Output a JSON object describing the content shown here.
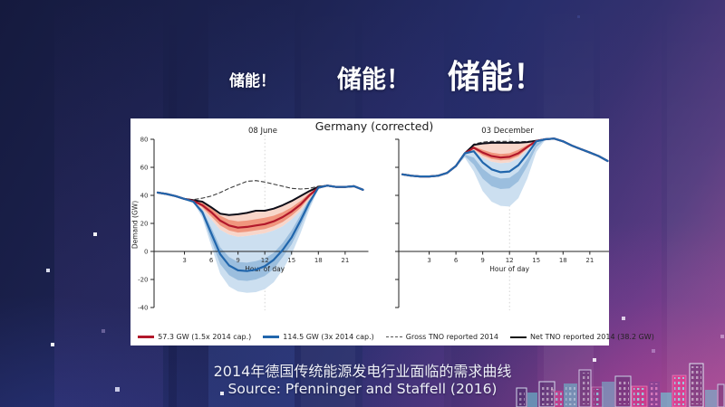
{
  "headline": {
    "items": [
      {
        "text": "储能！"
      },
      {
        "text": "储能！"
      },
      {
        "text": "储能！"
      }
    ]
  },
  "caption": {
    "line1": "2014年德国传统能源发电行业面临的需求曲线",
    "line2": "Source: Pfenninger and Staffell (2016)"
  },
  "chart_data": {
    "type": "line",
    "title": "Germany (corrected)",
    "ylabel": "Demand (GW)",
    "xlabel": "Hour of day",
    "ylim": [
      -45,
      85
    ],
    "yticks": [
      -40,
      -20,
      0,
      20,
      40,
      60,
      80
    ],
    "xticks": [
      3,
      6,
      9,
      12,
      15,
      18,
      21
    ],
    "vline_hour": 12,
    "grid": "off",
    "legend_position": "bottom",
    "colors": {
      "red": "#b2182b",
      "blue": "#2166ac",
      "gross": "#3a3a3a",
      "net": "#0d0d18",
      "band_red_outer": "#f7d3c6",
      "band_red_inner": "#ee8d73",
      "band_blue_outer": "#ccdff0",
      "band_blue_inner": "#8db5d9"
    },
    "legend": [
      {
        "label": "57.3 GW (1.5x 2014 cap.)",
        "color": "#b2182b",
        "style": "solid"
      },
      {
        "label": "114.5 GW (3x 2014 cap.)",
        "color": "#2166ac",
        "style": "solid"
      },
      {
        "label": "Gross TNO reported 2014",
        "color": "#555555",
        "style": "dashed"
      },
      {
        "label": "Net TNO reported 2014 (38.2 GW)",
        "color": "#111111",
        "style": "solid"
      }
    ],
    "subplots": [
      {
        "title": "08 June",
        "show_y_tick_labels": true,
        "hours": [
          0,
          1,
          2,
          3,
          4,
          5,
          6,
          7,
          8,
          9,
          10,
          11,
          12,
          13,
          14,
          15,
          16,
          17,
          18,
          19,
          20,
          21,
          22,
          23
        ],
        "series": {
          "gross": [
            42,
            41,
            39.5,
            37.5,
            37,
            38,
            39.5,
            42,
            45,
            47.5,
            50,
            50.5,
            49.5,
            48,
            46.5,
            45,
            44.5,
            45,
            46.5,
            47,
            46,
            46,
            46.5,
            44
          ],
          "net": [
            42,
            41,
            39.5,
            37.5,
            36.5,
            35.5,
            31.5,
            27,
            26,
            26.5,
            27.5,
            29,
            29,
            30.5,
            33,
            36,
            39.5,
            43,
            46,
            47,
            46,
            46,
            46.5,
            44
          ],
          "capacity_57_3": [
            42,
            41,
            39.5,
            37.5,
            36,
            33,
            28,
            22,
            18.5,
            17,
            17.5,
            18.5,
            19.5,
            21.5,
            24.5,
            28.5,
            33.5,
            40,
            45.5,
            47,
            46,
            46,
            46.5,
            44
          ],
          "capacity_114_5": [
            42,
            41,
            39.5,
            37.5,
            35.5,
            28,
            13,
            -2,
            -10,
            -13.5,
            -14,
            -13,
            -10.5,
            -6,
            1,
            10,
            22,
            35,
            45.5,
            47,
            46,
            46,
            46.5,
            44
          ]
        },
        "bands": {
          "blue_outer": {
            "upper": [
              42,
              41,
              39.5,
              37.5,
              35.5,
              30,
              23,
              15.5,
              12,
              10.5,
              11,
              12,
              13,
              15,
              18,
              23,
              29,
              37,
              45,
              47,
              46,
              46,
              46.5,
              44
            ],
            "lower": [
              42,
              41,
              39.5,
              37.5,
              35,
              24,
              4,
              -16,
              -25,
              -28.5,
              -29.5,
              -29,
              -27,
              -22,
              -13,
              -2,
              13,
              30,
              44.5,
              47,
              46,
              46,
              46.5,
              44
            ]
          },
          "blue_inner": {
            "upper": [
              42,
              41,
              39.5,
              37.5,
              35.5,
              30,
              17,
              3,
              -4,
              -7.5,
              -8,
              -7,
              -5,
              -1,
              6,
              15,
              26,
              38,
              45.5,
              47,
              46,
              46,
              46.5,
              44
            ],
            "lower": [
              42,
              41,
              39.5,
              37.5,
              35.2,
              26,
              8,
              -9,
              -17,
              -20.5,
              -21,
              -20,
              -17.5,
              -12.5,
              -4,
              5,
              18,
              32,
              45,
              47,
              46,
              46,
              46.5,
              44
            ]
          },
          "red_outer": {
            "upper": [
              42,
              41,
              39.5,
              37.5,
              36.5,
              35.5,
              31.5,
              27,
              26,
              26.5,
              27.5,
              29,
              29,
              30.5,
              33,
              36,
              39.5,
              43,
              46,
              47,
              46,
              46,
              46.5,
              44
            ],
            "lower": [
              42,
              41,
              39.5,
              37.5,
              35.5,
              30,
              23,
              15.5,
              12,
              10.5,
              11,
              12,
              13,
              15,
              18,
              23,
              29,
              37,
              45,
              47,
              46,
              46,
              46.5,
              44
            ]
          },
          "red_inner": {
            "upper": [
              42,
              41,
              39.5,
              37.5,
              36.2,
              34.5,
              31,
              25.5,
              22.5,
              21.5,
              22,
              23,
              24,
              25.5,
              28,
              31.5,
              36,
              41.5,
              45.8,
              47,
              46,
              46,
              46.5,
              44
            ],
            "lower": [
              42,
              41,
              39.5,
              37.5,
              35.8,
              31.5,
              25,
              18.5,
              15,
              13.5,
              14,
              15,
              16,
              18,
              21,
              25.5,
              31,
              38.5,
              45.2,
              47,
              46,
              46,
              46.5,
              44
            ]
          }
        }
      },
      {
        "title": "03 December",
        "show_y_tick_labels": false,
        "hours": [
          0,
          1,
          2,
          3,
          4,
          5,
          6,
          7,
          8,
          9,
          10,
          11,
          12,
          13,
          14,
          15,
          16,
          17,
          18,
          19,
          20,
          21,
          22,
          23
        ],
        "series": {
          "gross": [
            55,
            54,
            53.5,
            53.5,
            54,
            56,
            61,
            70,
            76.5,
            78,
            78.5,
            78.5,
            78.5,
            78.2,
            78.4,
            79,
            80,
            80.5,
            78.5,
            75.5,
            73,
            70.5,
            68,
            64.5
          ],
          "net": [
            55,
            54,
            53.5,
            53.5,
            54,
            56,
            61,
            70,
            76,
            77,
            77.5,
            77.5,
            77.5,
            77.5,
            78,
            79,
            80,
            80.5,
            78.5,
            75.5,
            73,
            70.5,
            68,
            64.5
          ],
          "capacity_57_3": [
            55,
            54,
            53.5,
            53.5,
            54,
            56,
            61,
            70,
            74,
            70.5,
            68,
            67,
            67.5,
            70,
            74.5,
            78.8,
            80,
            80.5,
            78.5,
            75.5,
            73,
            70.5,
            68,
            64.5
          ],
          "capacity_114_5": [
            55,
            54,
            53.5,
            53.5,
            54,
            56,
            61,
            70,
            71.5,
            63.5,
            58.5,
            56.5,
            57,
            61.5,
            69.5,
            78.5,
            80,
            80.5,
            78.5,
            75.5,
            73,
            70.5,
            68,
            64.5
          ]
        },
        "bands": {
          "blue_outer": {
            "upper": [
              55,
              54,
              53.5,
              53.5,
              54,
              56,
              61,
              69.5,
              72,
              67,
              64,
              63,
              63.5,
              66.5,
              72.5,
              78.5,
              80,
              80.5,
              78.5,
              75.5,
              73,
              70.5,
              68,
              64.5
            ],
            "lower": [
              55,
              54,
              53.5,
              53.5,
              54,
              56,
              60.5,
              67,
              57,
              43,
              35.5,
              32.5,
              32,
              38,
              52,
              71,
              79.5,
              80.5,
              78.5,
              75.5,
              73,
              70.5,
              68,
              64.5
            ]
          },
          "blue_inner": {
            "upper": [
              55,
              54,
              53.5,
              53.5,
              54,
              56,
              61,
              69,
              67,
              59,
              54,
              52,
              52.5,
              57,
              66,
              77,
              80,
              80.5,
              78.5,
              75.5,
              73,
              70.5,
              68,
              64.5
            ],
            "lower": [
              55,
              54,
              53.5,
              53.5,
              54,
              56,
              60.8,
              68,
              62,
              52,
              46.5,
              44.5,
              45,
              50,
              61,
              74.5,
              79.8,
              80.5,
              78.5,
              75.5,
              73,
              70.5,
              68,
              64.5
            ]
          },
          "red_outer": {
            "upper": [
              55,
              54,
              53.5,
              53.5,
              54,
              56,
              61,
              70,
              76,
              77,
              77.5,
              77.5,
              77.5,
              77.5,
              78,
              79,
              80,
              80.5,
              78.5,
              75.5,
              73,
              70.5,
              68,
              64.5
            ],
            "lower": [
              55,
              54,
              53.5,
              53.5,
              54,
              56,
              61,
              69.5,
              72,
              67,
              64,
              63,
              63.5,
              66.5,
              72.5,
              78.5,
              80,
              80.5,
              78.5,
              75.5,
              73,
              70.5,
              68,
              64.5
            ]
          },
          "red_inner": {
            "upper": [
              55,
              54,
              53.5,
              53.5,
              54,
              56,
              61,
              70,
              75,
              72.5,
              70.5,
              69.5,
              70,
              72.5,
              76,
              79,
              80,
              80.5,
              78.5,
              75.5,
              73,
              70.5,
              68,
              64.5
            ],
            "lower": [
              55,
              54,
              53.5,
              53.5,
              54,
              56,
              61,
              69.8,
              73,
              68.5,
              66,
              65,
              65.5,
              68,
              73.5,
              78.6,
              80,
              80.5,
              78.5,
              75.5,
              73,
              70.5,
              68,
              64.5
            ]
          }
        }
      }
    ]
  }
}
